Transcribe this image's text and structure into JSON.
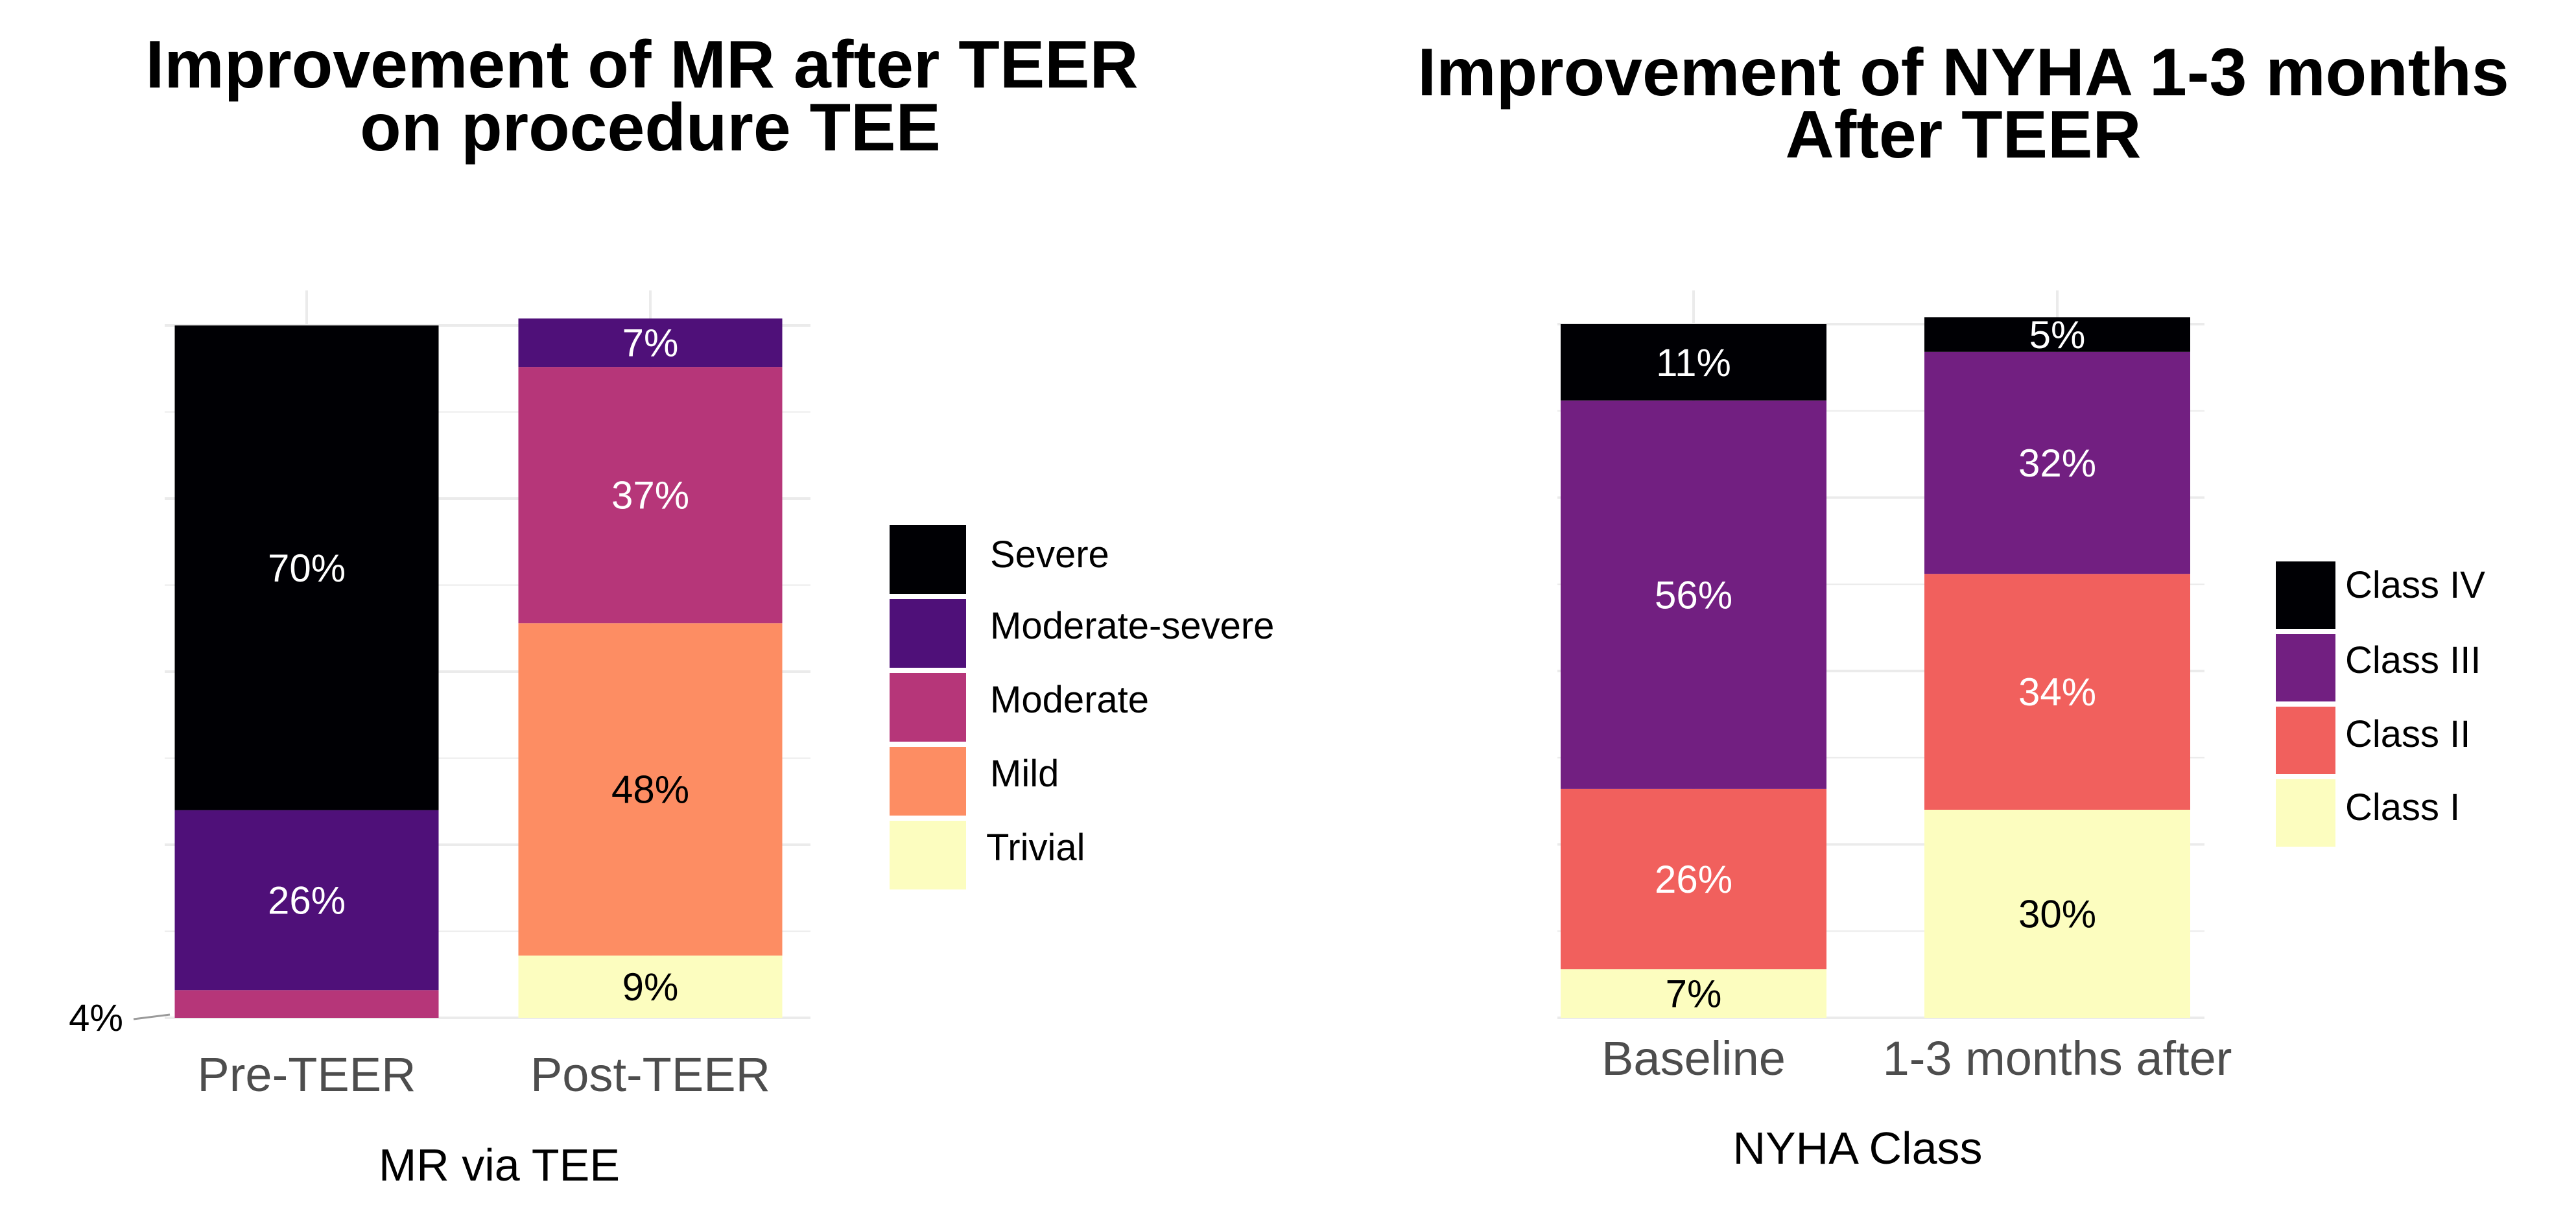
{
  "chart_data": [
    {
      "type": "bar",
      "stacked": true,
      "percent": true,
      "title_lines": [
        "Improvement of MR after TEER",
        "on procedure TEE"
      ],
      "xlabel": "MR via TEE",
      "ylabel": "",
      "ylim": [
        0,
        100
      ],
      "grid": true,
      "legend_position": "right",
      "categories": [
        "Pre-TEER",
        "Post-TEER"
      ],
      "series": [
        {
          "name": "Trivial",
          "color": "#FCFDBF",
          "text_color": "#000000",
          "values": [
            0,
            9
          ],
          "labels": [
            null,
            "9%"
          ]
        },
        {
          "name": "Mild",
          "color": "#FD8D63",
          "text_color": "#000000",
          "values": [
            0,
            48
          ],
          "labels": [
            null,
            "48%"
          ]
        },
        {
          "name": "Moderate",
          "color": "#B63679",
          "text_color": "#FFFFFF",
          "values": [
            4,
            37
          ],
          "labels": [
            null,
            "37%"
          ]
        },
        {
          "name": "Moderate-severe",
          "color": "#4F1079",
          "text_color": "#FFFFFF",
          "values": [
            26,
            7
          ],
          "labels": [
            "26%",
            "7%"
          ]
        },
        {
          "name": "Severe",
          "color": "#000004",
          "text_color": "#FFFFFF",
          "values": [
            70,
            0
          ],
          "labels": [
            "70%",
            null
          ]
        }
      ],
      "legend_order": [
        "Severe",
        "Moderate-severe",
        "Moderate",
        "Mild",
        "Trivial"
      ],
      "annotations": [
        {
          "text": "4%",
          "category": "Pre-TEER",
          "series": "Moderate",
          "side": "left"
        }
      ]
    },
    {
      "type": "bar",
      "stacked": true,
      "percent": true,
      "title_lines": [
        "Improvement of NYHA 1-3 months",
        "After TEER"
      ],
      "xlabel": "NYHA Class",
      "ylabel": "",
      "ylim": [
        0,
        100
      ],
      "grid": true,
      "legend_position": "right",
      "categories": [
        "Baseline",
        "1-3 months after"
      ],
      "series": [
        {
          "name": "Class I",
          "color": "#FCFDBF",
          "text_color": "#000000",
          "values": [
            7,
            30
          ],
          "labels": [
            "7%",
            "30%"
          ]
        },
        {
          "name": "Class II",
          "color": "#F1605D",
          "text_color": "#FFFFFF",
          "values": [
            26,
            34
          ],
          "labels": [
            "26%",
            "34%"
          ]
        },
        {
          "name": "Class III",
          "color": "#721F81",
          "text_color": "#FFFFFF",
          "values": [
            56,
            32
          ],
          "labels": [
            "56%",
            "32%"
          ]
        },
        {
          "name": "Class IV",
          "color": "#000004",
          "text_color": "#FFFFFF",
          "values": [
            11,
            5
          ],
          "labels": [
            "11%",
            "5%"
          ]
        }
      ],
      "legend_order": [
        "Class IV",
        "Class III",
        "Class II",
        "Class I"
      ],
      "annotations": []
    }
  ]
}
